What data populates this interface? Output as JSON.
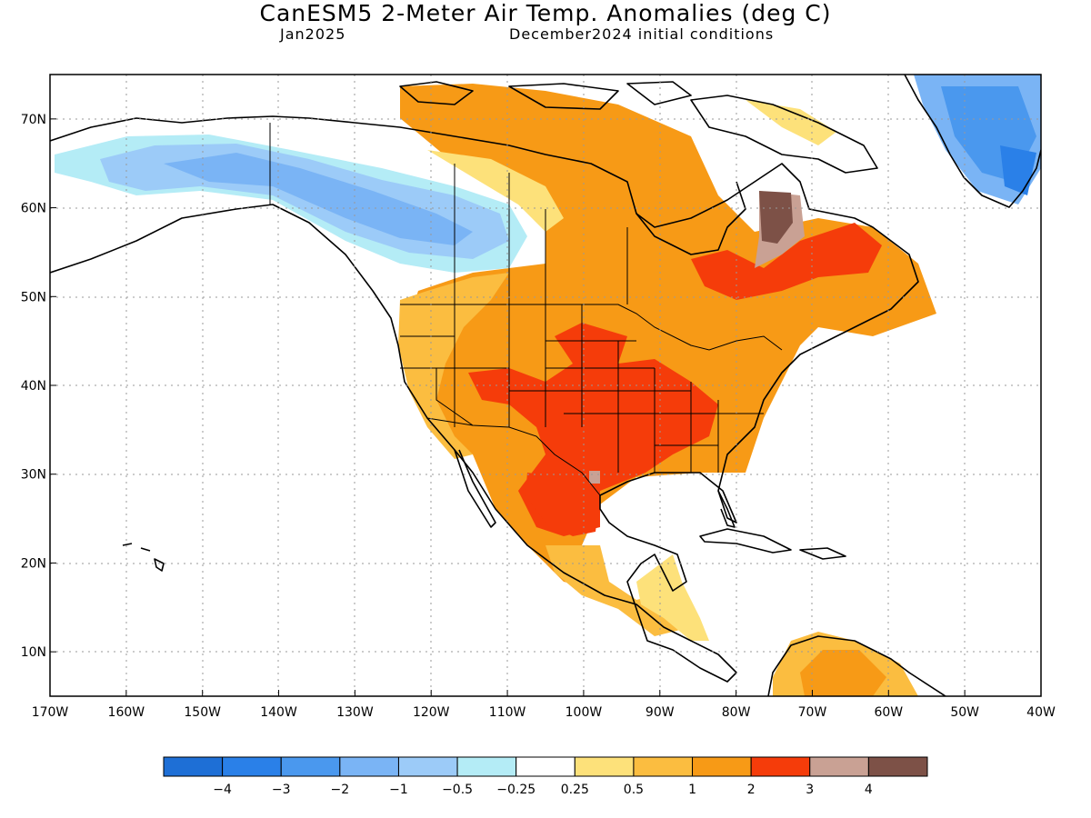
{
  "header": {
    "title": "CanESM5 2-Meter Air Temp. Anomalies (deg C)",
    "target_month": "Jan2025",
    "initial_conditions": "December2024 initial conditions"
  },
  "map": {
    "lon_range": [
      -170,
      -40
    ],
    "lat_range": [
      5,
      75
    ],
    "lat_ticks": [
      "70N",
      "60N",
      "50N",
      "40N",
      "30N",
      "20N",
      "10N"
    ],
    "lon_ticks": [
      "170W",
      "160W",
      "150W",
      "140W",
      "130W",
      "120W",
      "110W",
      "100W",
      "90W",
      "80W",
      "70W",
      "60W",
      "50W",
      "40W"
    ],
    "grid": "dotted"
  },
  "legend": {
    "colors": [
      "#1e6fd6",
      "#2a80e8",
      "#4a98ee",
      "#7ab4f5",
      "#9ccbf8",
      "#b4ecf6",
      "#ffffff",
      "#fde17a",
      "#fbbd40",
      "#f79a16",
      "#f53c0a",
      "#c9a194",
      "#7d5147"
    ],
    "labels": [
      "−4",
      "−3",
      "−2",
      "−1",
      "−0.5",
      "−0.25",
      "0.25",
      "0.5",
      "1",
      "2",
      "3",
      "4"
    ]
  }
}
